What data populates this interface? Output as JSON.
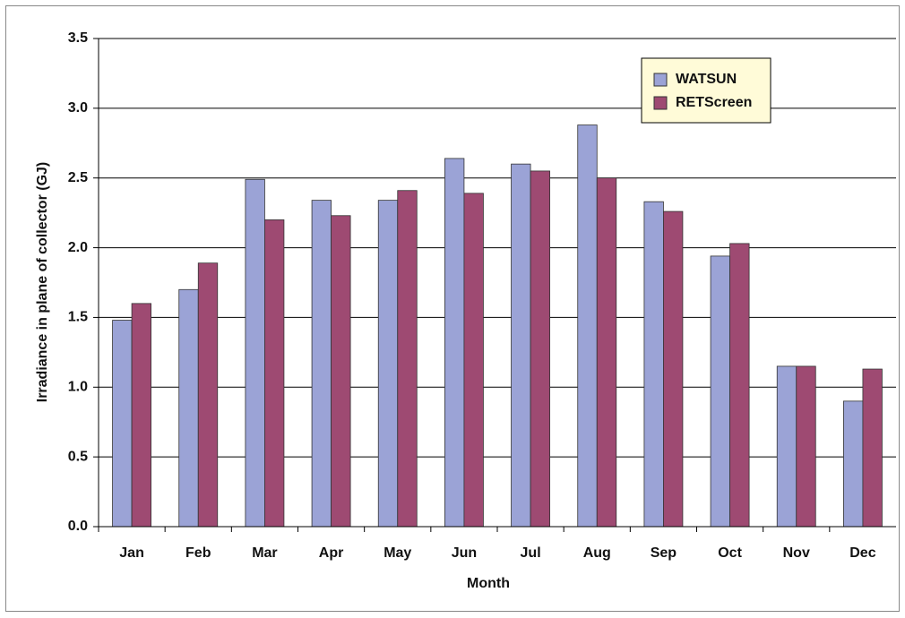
{
  "chart_data": {
    "type": "bar",
    "x_label": "Month",
    "y_label": "Irradiance in plane of collector (GJ)",
    "categories": [
      "Jan",
      "Feb",
      "Mar",
      "Apr",
      "May",
      "Jun",
      "Jul",
      "Aug",
      "Sep",
      "Oct",
      "Nov",
      "Dec"
    ],
    "series": [
      {
        "name": "WATSUN",
        "color": "#9ba3d6",
        "values": [
          1.48,
          1.7,
          2.49,
          2.34,
          2.34,
          2.64,
          2.6,
          2.88,
          2.33,
          1.94,
          1.15,
          0.9
        ]
      },
      {
        "name": "RETScreen",
        "color": "#9e4a72",
        "values": [
          1.6,
          1.89,
          2.2,
          2.23,
          2.41,
          2.39,
          2.55,
          2.5,
          2.26,
          2.03,
          1.15,
          1.13
        ]
      }
    ],
    "ylim": [
      0,
      3.5
    ],
    "yticks": [
      {
        "value": 0,
        "label": "0.0"
      },
      0.5,
      {
        "value": 1,
        "label": "1.0"
      },
      1.5,
      {
        "value": 2,
        "label": "2.0"
      },
      2.5,
      {
        "value": 3,
        "label": "3.0"
      },
      3.5
    ],
    "grid": true,
    "legend_position": "top-right"
  }
}
